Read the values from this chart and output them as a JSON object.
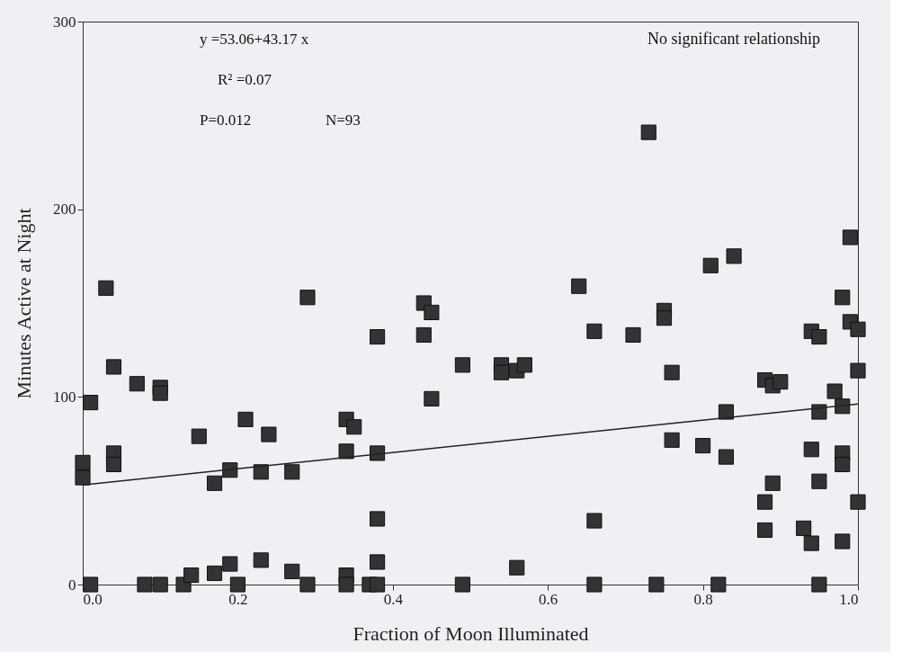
{
  "chart_data": {
    "type": "scatter",
    "xlabel": "Fraction of Moon Illuminated",
    "ylabel": "Minutes Active at Night",
    "xlim": [
      0,
      1
    ],
    "ylim": [
      0,
      300
    ],
    "xticks": [
      {
        "value": 0,
        "label": "0.0"
      },
      {
        "value": 0.2,
        "label": "0.2"
      },
      {
        "value": 0.4,
        "label": "0.4"
      },
      {
        "value": 0.6,
        "label": "0.6"
      },
      {
        "value": 0.8,
        "label": "0.8"
      },
      {
        "value": 1,
        "label": "1.0"
      }
    ],
    "yticks": [
      0,
      100,
      200,
      300
    ],
    "grid": false,
    "annotations": [
      "y =53.06+43.17 x",
      "R² =0.07",
      "P=0.012",
      "N=93",
      "No significant relationship"
    ],
    "series": [
      {
        "marker": "square",
        "color": "#333333",
        "x": [
          0,
          0,
          0.01,
          0.01,
          0.03,
          0.04,
          0.04,
          0.04,
          0.07,
          0.08,
          0.1,
          0.1,
          0.1,
          0.13,
          0.14,
          0.15,
          0.17,
          0.17,
          0.19,
          0.19,
          0.2,
          0.21,
          0.23,
          0.23,
          0.24,
          0.27,
          0.27,
          0.29,
          0.29,
          0.34,
          0.34,
          0.34,
          0.34,
          0.35,
          0.37,
          0.38,
          0.38,
          0.38,
          0.38,
          0.38,
          0.44,
          0.44,
          0.45,
          0.45,
          0.49,
          0.49,
          0.54,
          0.54,
          0.56,
          0.56,
          0.57,
          0.64,
          0.66,
          0.66,
          0.66,
          0.71,
          0.73,
          0.74,
          0.75,
          0.75,
          0.76,
          0.76,
          0.8,
          0.81,
          0.82,
          0.83,
          0.83,
          0.84,
          0.88,
          0.88,
          0.88,
          0.89,
          0.89,
          0.9,
          0.93,
          0.94,
          0.94,
          0.94,
          0.95,
          0.95,
          0.95,
          0.95,
          0.97,
          0.98,
          0.98,
          0.98,
          0.98,
          0.98,
          0.99,
          0.99,
          1,
          1,
          1
        ],
        "values": [
          65,
          57,
          97,
          0,
          158,
          116,
          70,
          64,
          107,
          0,
          105,
          102,
          0,
          0,
          5,
          79,
          54,
          6,
          61,
          11,
          0,
          88,
          60,
          13,
          80,
          60,
          7,
          153,
          0,
          88,
          71,
          5,
          0,
          84,
          0,
          132,
          70,
          35,
          12,
          0,
          150,
          133,
          145,
          99,
          117,
          0,
          117,
          113,
          114,
          9,
          117,
          159,
          135,
          34,
          0,
          133,
          241,
          0,
          146,
          142,
          113,
          77,
          74,
          170,
          0,
          92,
          68,
          175,
          109,
          44,
          29,
          106,
          54,
          108,
          30,
          135,
          72,
          22,
          132,
          92,
          55,
          0,
          103,
          153,
          95,
          70,
          64,
          23,
          185,
          140,
          136,
          114,
          44
        ]
      },
      {
        "type": "line",
        "line_style": "solid",
        "color": "#222222",
        "x": [
          0,
          1
        ],
        "values": [
          53.1,
          96.2
        ]
      }
    ]
  }
}
